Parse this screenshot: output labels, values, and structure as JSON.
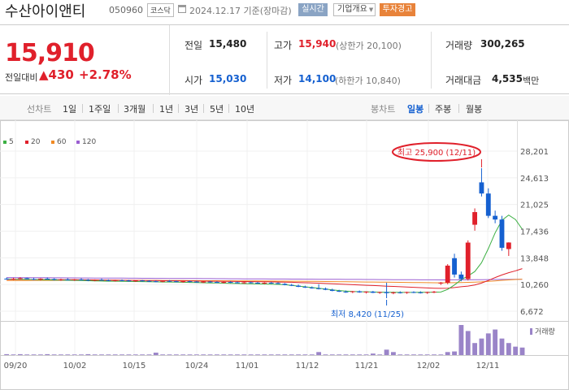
{
  "header": {
    "title": "수산아이앤티",
    "code": "050960",
    "market": "코스닥",
    "date": "2024.12.17 기준(장마감)",
    "realtime_button": "실시간",
    "company_button": "기업개요",
    "warning_button": "투자경고"
  },
  "quote": {
    "price": "15,910",
    "change_label": "전일대비",
    "change_value": "▲430",
    "change_pct": "+2.78%",
    "prev_close_label": "전일",
    "prev_close": "15,480",
    "high_label": "고가",
    "high": "15,940",
    "upper_limit": "(상한가 20,100)",
    "volume_label": "거래량",
    "volume": "300,265",
    "open_label": "시가",
    "open": "15,030",
    "low_label": "저가",
    "low": "14,100",
    "lower_limit": "(하한가 10,840)",
    "amount_label": "거래대금",
    "amount": "4,535",
    "amount_unit": "백만"
  },
  "tabs": {
    "line_label": "선차트",
    "periods": [
      "1일",
      "1주일",
      "3개월",
      "1년",
      "3년",
      "5년",
      "10년"
    ],
    "candle_label": "봉차트",
    "candles": [
      "일봉",
      "주봉",
      "월봉"
    ],
    "active_candle": "일봉"
  },
  "colors": {
    "up": "#e0202b",
    "down": "#1560d0",
    "ma5": "#3cb043",
    "ma20": "#e0202b",
    "ma60": "#f08a24",
    "ma120": "#9a5fd1",
    "volume": "#9a84c8"
  },
  "chart_data": {
    "type": "candlestick",
    "legend": [
      {
        "name": "5",
        "color": "#3cb043"
      },
      {
        "name": "20",
        "color": "#e0202b"
      },
      {
        "name": "60",
        "color": "#f08a24"
      },
      {
        "name": "120",
        "color": "#9a5fd1"
      }
    ],
    "y_ticks": [
      "28,201",
      "24,613",
      "21,025",
      "17,436",
      "13,848",
      "10,260",
      "6,672"
    ],
    "ylim": [
      6672,
      28201
    ],
    "x_ticks": [
      "09/20",
      "10/02",
      "10/15",
      "10/24",
      "11/01",
      "11/12",
      "11/21",
      "12/02",
      "12/11"
    ],
    "high_annotation": "최고 25,900 (12/11)",
    "low_annotation": "최저 8,420 (11/25)",
    "volume_label": "거래량",
    "candles": [
      {
        "o": 11050,
        "h": 11200,
        "l": 10900,
        "c": 11000
      },
      {
        "o": 11000,
        "h": 11150,
        "l": 10850,
        "c": 11050
      },
      {
        "o": 11050,
        "h": 11250,
        "l": 10900,
        "c": 11100
      },
      {
        "o": 11100,
        "h": 11200,
        "l": 10950,
        "c": 11000
      },
      {
        "o": 11000,
        "h": 11150,
        "l": 10850,
        "c": 10950
      },
      {
        "o": 10950,
        "h": 11100,
        "l": 10800,
        "c": 11050
      },
      {
        "o": 11050,
        "h": 11200,
        "l": 10950,
        "c": 11000
      },
      {
        "o": 11000,
        "h": 11100,
        "l": 10800,
        "c": 10900
      },
      {
        "o": 10900,
        "h": 11050,
        "l": 10750,
        "c": 10950
      },
      {
        "o": 10950,
        "h": 11100,
        "l": 10800,
        "c": 10850
      },
      {
        "o": 10850,
        "h": 11000,
        "l": 10750,
        "c": 10950
      },
      {
        "o": 10950,
        "h": 11100,
        "l": 10800,
        "c": 10900
      },
      {
        "o": 10900,
        "h": 11000,
        "l": 10700,
        "c": 10800
      },
      {
        "o": 10800,
        "h": 10950,
        "l": 10700,
        "c": 10900
      },
      {
        "o": 10900,
        "h": 11050,
        "l": 10800,
        "c": 10850
      },
      {
        "o": 10850,
        "h": 10950,
        "l": 10700,
        "c": 10750
      },
      {
        "o": 10750,
        "h": 10900,
        "l": 10650,
        "c": 10850
      },
      {
        "o": 10850,
        "h": 10950,
        "l": 10700,
        "c": 10800
      },
      {
        "o": 10800,
        "h": 10900,
        "l": 10650,
        "c": 10700
      },
      {
        "o": 10700,
        "h": 10850,
        "l": 10600,
        "c": 10800
      },
      {
        "o": 10800,
        "h": 10900,
        "l": 10650,
        "c": 10750
      },
      {
        "o": 10750,
        "h": 10850,
        "l": 10600,
        "c": 10700
      },
      {
        "o": 10700,
        "h": 10800,
        "l": 10550,
        "c": 10650
      },
      {
        "o": 10650,
        "h": 10800,
        "l": 10550,
        "c": 10750
      },
      {
        "o": 10750,
        "h": 10850,
        "l": 10600,
        "c": 10700
      },
      {
        "o": 10700,
        "h": 10800,
        "l": 10550,
        "c": 10600
      },
      {
        "o": 10600,
        "h": 10750,
        "l": 10500,
        "c": 10700
      },
      {
        "o": 10700,
        "h": 10800,
        "l": 10550,
        "c": 10650
      },
      {
        "o": 10650,
        "h": 10750,
        "l": 10500,
        "c": 10550
      },
      {
        "o": 10550,
        "h": 10700,
        "l": 10450,
        "c": 10650
      },
      {
        "o": 10650,
        "h": 10750,
        "l": 10500,
        "c": 10600
      },
      {
        "o": 10600,
        "h": 10700,
        "l": 10450,
        "c": 10500
      },
      {
        "o": 10500,
        "h": 10650,
        "l": 10400,
        "c": 10600
      },
      {
        "o": 10600,
        "h": 10700,
        "l": 10450,
        "c": 10550
      },
      {
        "o": 10550,
        "h": 10650,
        "l": 10400,
        "c": 10450
      },
      {
        "o": 10450,
        "h": 10600,
        "l": 10350,
        "c": 10550
      },
      {
        "o": 10550,
        "h": 10650,
        "l": 10400,
        "c": 10500
      },
      {
        "o": 10500,
        "h": 10600,
        "l": 10350,
        "c": 10400
      },
      {
        "o": 10400,
        "h": 10550,
        "l": 10300,
        "c": 10500
      },
      {
        "o": 10500,
        "h": 10600,
        "l": 10350,
        "c": 10450
      },
      {
        "o": 10450,
        "h": 10550,
        "l": 10300,
        "c": 10350
      },
      {
        "o": 10350,
        "h": 10450,
        "l": 10150,
        "c": 10200
      },
      {
        "o": 10200,
        "h": 10350,
        "l": 10050,
        "c": 10100
      },
      {
        "o": 10100,
        "h": 10250,
        "l": 9900,
        "c": 9950
      },
      {
        "o": 9950,
        "h": 10100,
        "l": 9800,
        "c": 9850
      },
      {
        "o": 9850,
        "h": 10000,
        "l": 9700,
        "c": 9750
      },
      {
        "o": 9750,
        "h": 10300,
        "l": 9600,
        "c": 9700
      },
      {
        "o": 9700,
        "h": 9850,
        "l": 9500,
        "c": 9550
      },
      {
        "o": 9550,
        "h": 9700,
        "l": 9350,
        "c": 9400
      },
      {
        "o": 9400,
        "h": 9550,
        "l": 9250,
        "c": 9300
      },
      {
        "o": 9300,
        "h": 9450,
        "l": 9150,
        "c": 9250
      },
      {
        "o": 9250,
        "h": 9400,
        "l": 9100,
        "c": 9350
      },
      {
        "o": 9350,
        "h": 9450,
        "l": 9150,
        "c": 9200
      },
      {
        "o": 9200,
        "h": 9350,
        "l": 9050,
        "c": 9300
      },
      {
        "o": 9300,
        "h": 9400,
        "l": 9100,
        "c": 9150
      },
      {
        "o": 9150,
        "h": 9300,
        "l": 9000,
        "c": 9250
      },
      {
        "o": 9250,
        "h": 10500,
        "l": 8420,
        "c": 9100
      },
      {
        "o": 9100,
        "h": 9300,
        "l": 8950,
        "c": 9200
      },
      {
        "o": 9200,
        "h": 9350,
        "l": 9050,
        "c": 9150
      },
      {
        "o": 9150,
        "h": 9300,
        "l": 9000,
        "c": 9250
      },
      {
        "o": 9250,
        "h": 9350,
        "l": 9100,
        "c": 9200
      },
      {
        "o": 9200,
        "h": 9350,
        "l": 9050,
        "c": 9150
      },
      {
        "o": 9150,
        "h": 9300,
        "l": 9000,
        "c": 9250
      },
      {
        "o": 9250,
        "h": 9400,
        "l": 9100,
        "c": 9300
      },
      {
        "o": 10400,
        "h": 10600,
        "l": 10200,
        "c": 10500
      },
      {
        "o": 10500,
        "h": 13000,
        "l": 10300,
        "c": 12800
      },
      {
        "o": 13800,
        "h": 14400,
        "l": 11200,
        "c": 11600
      },
      {
        "o": 11600,
        "h": 12000,
        "l": 10700,
        "c": 11000
      },
      {
        "o": 11000,
        "h": 16200,
        "l": 10800,
        "c": 15900
      },
      {
        "o": 18300,
        "h": 20500,
        "l": 17500,
        "c": 20000
      },
      {
        "o": 24000,
        "h": 25900,
        "l": 22100,
        "c": 22500
      },
      {
        "o": 22500,
        "h": 23200,
        "l": 19200,
        "c": 19500
      },
      {
        "o": 19500,
        "h": 20200,
        "l": 18500,
        "c": 19000
      },
      {
        "o": 19000,
        "h": 19500,
        "l": 14800,
        "c": 15200
      },
      {
        "o": 15030,
        "h": 15940,
        "l": 14100,
        "c": 15910
      }
    ],
    "ma5": [
      11000,
      10980,
      10960,
      10950,
      10930,
      10910,
      10890,
      10870,
      10850,
      10830,
      10810,
      10790,
      10770,
      10750,
      10730,
      10710,
      10700,
      10690,
      10670,
      10660,
      10650,
      10630,
      10620,
      10600,
      10590,
      10570,
      10560,
      10540,
      10520,
      10500,
      10480,
      10460,
      10440,
      10420,
      10400,
      10380,
      10360,
      10340,
      10320,
      10300,
      10280,
      10230,
      10150,
      10050,
      9950,
      9850,
      9750,
      9650,
      9550,
      9450,
      9380,
      9330,
      9300,
      9280,
      9250,
      9230,
      9220,
      9210,
      9200,
      9200,
      9200,
      9210,
      9220,
      9230,
      9250,
      9600,
      10200,
      10900,
      11400,
      12000,
      13200,
      15100,
      17200,
      18900,
      19600,
      19000,
      17700
    ],
    "ma20": [
      10950,
      10945,
      10940,
      10935,
      10930,
      10925,
      10920,
      10915,
      10910,
      10905,
      10900,
      10895,
      10890,
      10880,
      10870,
      10860,
      10850,
      10840,
      10830,
      10820,
      10810,
      10800,
      10790,
      10780,
      10770,
      10760,
      10750,
      10740,
      10730,
      10720,
      10710,
      10700,
      10690,
      10680,
      10670,
      10660,
      10650,
      10640,
      10630,
      10620,
      10600,
      10580,
      10560,
      10530,
      10500,
      10470,
      10440,
      10400,
      10360,
      10320,
      10280,
      10240,
      10200,
      10160,
      10120,
      10080,
      10040,
      10000,
      9960,
      9920,
      9880,
      9840,
      9800,
      9770,
      9740,
      9760,
      9850,
      9960,
      10050,
      10200,
      10450,
      10800,
      11200,
      11550,
      11850,
      12100,
      12400
    ],
    "ma60": [
      10800,
      10800,
      10805,
      10805,
      10810,
      10810,
      10815,
      10815,
      10820,
      10820,
      10825,
      10825,
      10830,
      10830,
      10830,
      10830,
      10830,
      10830,
      10830,
      10825,
      10820,
      10815,
      10810,
      10805,
      10800,
      10795,
      10790,
      10785,
      10780,
      10775,
      10770,
      10765,
      10760,
      10755,
      10750,
      10745,
      10740,
      10735,
      10730,
      10725,
      10720,
      10715,
      10710,
      10700,
      10690,
      10680,
      10670,
      10660,
      10650,
      10640,
      10630,
      10620,
      10610,
      10600,
      10590,
      10580,
      10570,
      10560,
      10550,
      10540,
      10530,
      10520,
      10510,
      10500,
      10490,
      10495,
      10510,
      10530,
      10550,
      10580,
      10620,
      10680,
      10750,
      10820,
      10880,
      10930,
      10980
    ],
    "ma120": [
      11200,
      11195,
      11190,
      11185,
      11180,
      11175,
      11170,
      11165,
      11160,
      11155,
      11150,
      11145,
      11140,
      11135,
      11130,
      11125,
      11120,
      11115,
      11110,
      11105,
      11100,
      11095,
      11090,
      11085,
      11080,
      11075,
      11070,
      11065,
      11060,
      11055,
      11050,
      11045,
      11040,
      11035,
      11030,
      11025,
      11020,
      11015,
      11010,
      11005,
      11000,
      10995,
      10990,
      10985,
      10980,
      10975,
      10970,
      10965,
      10960,
      10955,
      10950,
      10945,
      10940,
      10935,
      10930,
      10925,
      10920,
      10915,
      10910,
      10905,
      10900,
      10895,
      10890,
      10885,
      10880,
      10880,
      10885,
      10890,
      10895,
      10900,
      10910,
      10920,
      10930,
      10940,
      10950,
      10960,
      10970
    ],
    "volume": [
      0.03,
      0.02,
      0.03,
      0.02,
      0.02,
      0.02,
      0.03,
      0.02,
      0.02,
      0.02,
      0.02,
      0.02,
      0.03,
      0.02,
      0.02,
      0.02,
      0.02,
      0.02,
      0.02,
      0.02,
      0.02,
      0.02,
      0.08,
      0.02,
      0.02,
      0.02,
      0.02,
      0.02,
      0.02,
      0.02,
      0.02,
      0.02,
      0.02,
      0.02,
      0.02,
      0.02,
      0.02,
      0.02,
      0.02,
      0.02,
      0.02,
      0.02,
      0.02,
      0.02,
      0.02,
      0.02,
      0.1,
      0.02,
      0.02,
      0.02,
      0.02,
      0.02,
      0.02,
      0.02,
      0.05,
      0.02,
      0.18,
      0.1,
      0.02,
      0.02,
      0.02,
      0.02,
      0.02,
      0.02,
      0.02,
      0.1,
      0.12,
      1.0,
      0.8,
      0.4,
      0.55,
      0.72,
      0.85,
      0.55,
      0.4,
      0.28,
      0.25
    ]
  }
}
